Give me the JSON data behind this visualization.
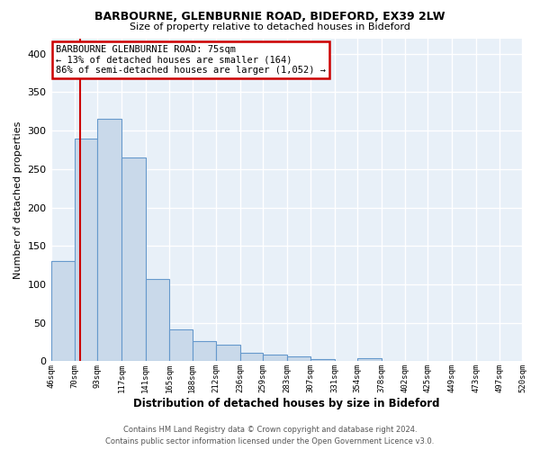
{
  "title1": "BARBOURNE, GLENBURNIE ROAD, BIDEFORD, EX39 2LW",
  "title2": "Size of property relative to detached houses in Bideford",
  "xlabel": "Distribution of detached houses by size in Bideford",
  "ylabel": "Number of detached properties",
  "footer1": "Contains HM Land Registry data © Crown copyright and database right 2024.",
  "footer2": "Contains public sector information licensed under the Open Government Licence v3.0.",
  "annotation_title": "BARBOURNE GLENBURNIE ROAD: 75sqm",
  "annotation_line1": "← 13% of detached houses are smaller (164)",
  "annotation_line2": "86% of semi-detached houses are larger (1,052) →",
  "bin_edges": [
    46,
    70,
    93,
    117,
    141,
    165,
    188,
    212,
    236,
    259,
    283,
    307,
    331,
    354,
    378,
    402,
    425,
    449,
    473,
    497,
    520
  ],
  "bar_values": [
    130,
    290,
    315,
    265,
    107,
    42,
    26,
    22,
    11,
    9,
    6,
    3,
    0,
    4,
    0,
    0,
    0,
    0,
    0,
    0
  ],
  "bar_color": "#c9d9ea",
  "bar_edge_color": "#6699cc",
  "bg_color": "#e8f0f8",
  "grid_color": "#ffffff",
  "property_line_x": 75,
  "property_line_color": "#cc0000",
  "annotation_box_color": "#ffffff",
  "annotation_box_edge": "#cc0000",
  "ylim": [
    0,
    420
  ],
  "yticks": [
    0,
    50,
    100,
    150,
    200,
    250,
    300,
    350,
    400
  ],
  "tick_labels": [
    "46sqm",
    "70sqm",
    "93sqm",
    "117sqm",
    "141sqm",
    "165sqm",
    "188sqm",
    "212sqm",
    "236sqm",
    "259sqm",
    "283sqm",
    "307sqm",
    "331sqm",
    "354sqm",
    "378sqm",
    "402sqm",
    "425sqm",
    "449sqm",
    "473sqm",
    "497sqm",
    "520sqm"
  ]
}
